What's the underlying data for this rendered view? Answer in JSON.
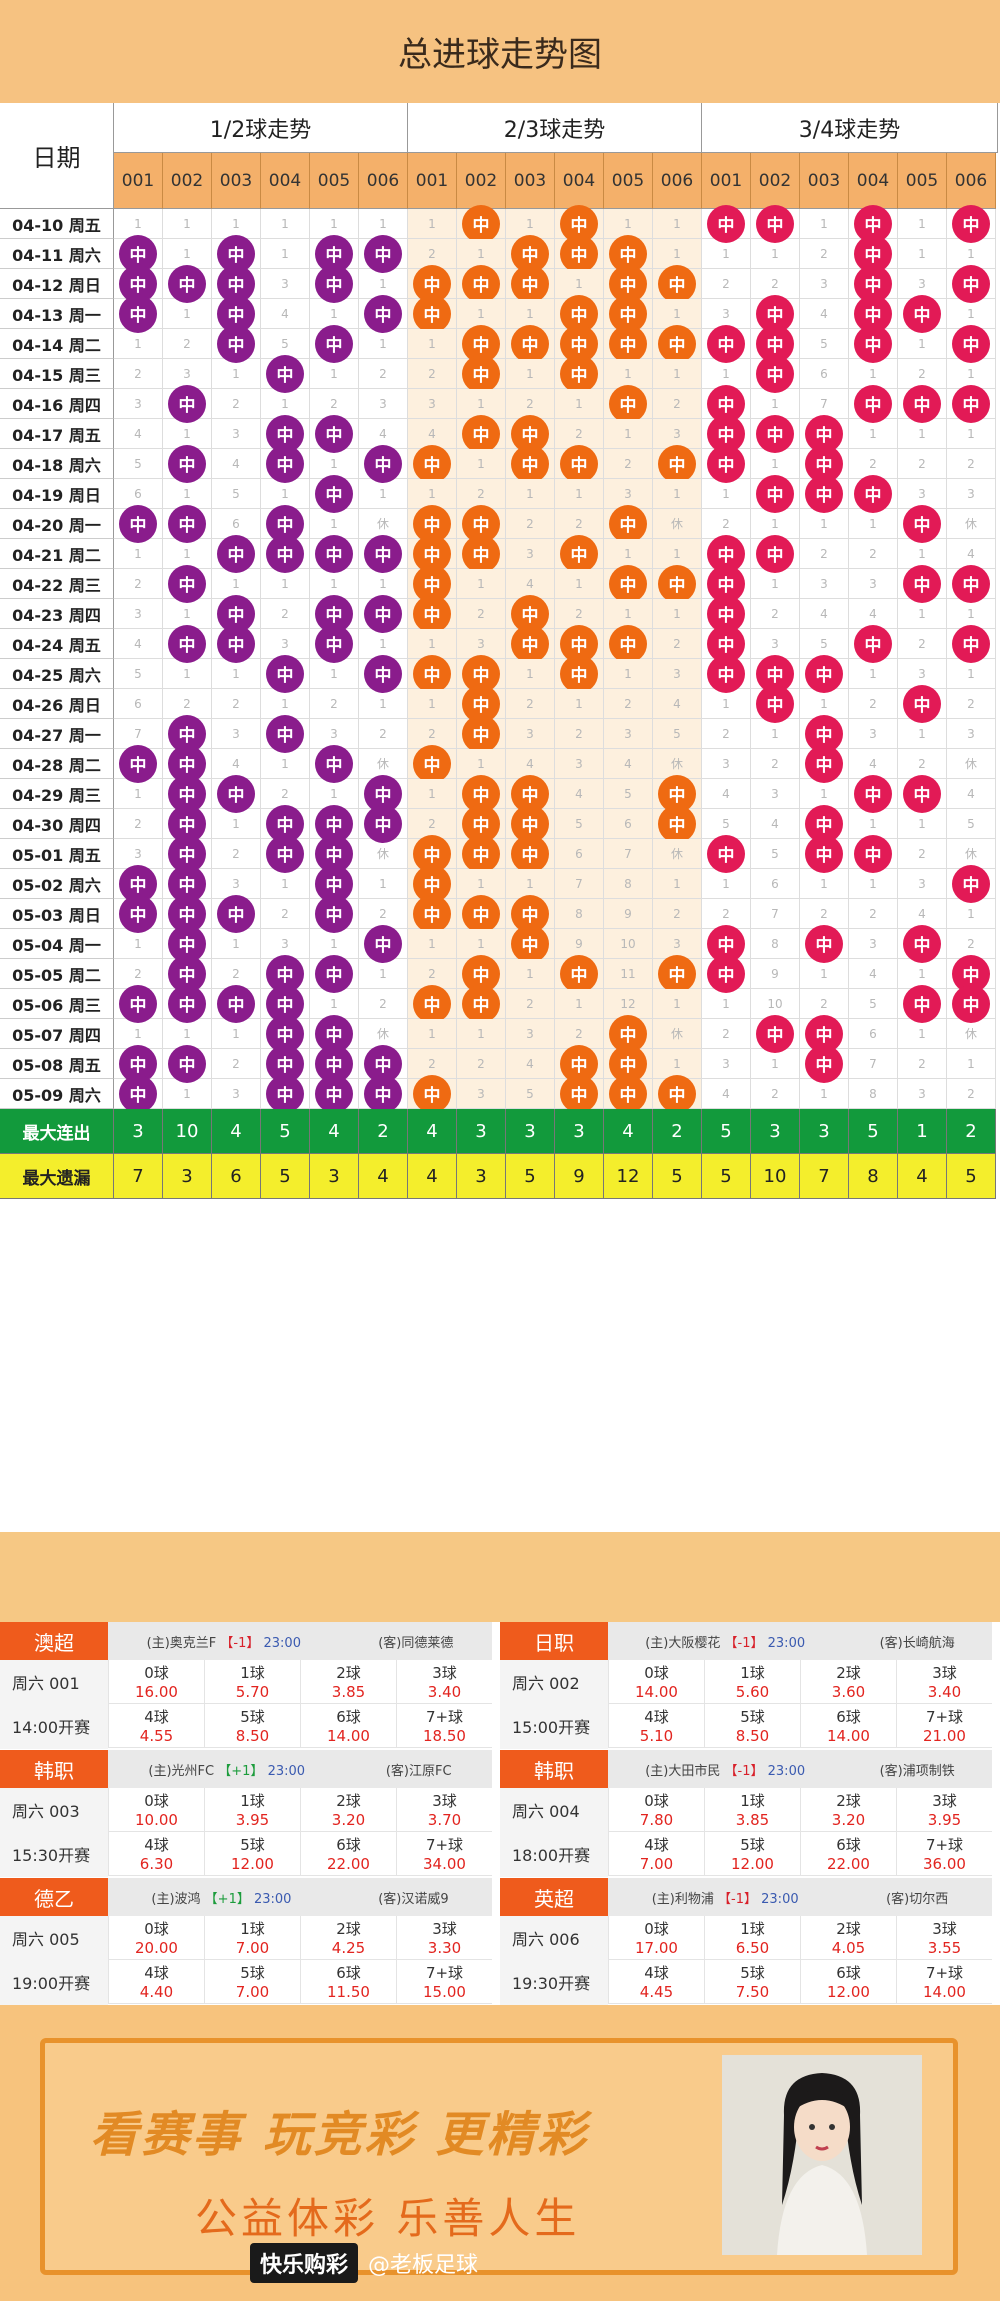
{
  "title": "总进球走势图",
  "header": {
    "date_label": "日期",
    "groups": [
      "1/2球走势",
      "2/3球走势",
      "3/4球走势"
    ],
    "numbers": [
      "001",
      "002",
      "003",
      "004",
      "005",
      "006"
    ]
  },
  "ball_label": "中",
  "rows": [
    {
      "date": "04-10 周五",
      "g1": [
        "1",
        "1",
        "1",
        "1",
        "1",
        "1"
      ],
      "g2": [
        "1",
        "中",
        "1",
        "中",
        "1",
        "1"
      ],
      "g3": [
        "中",
        "中",
        "1",
        "中",
        "1",
        "中"
      ]
    },
    {
      "date": "04-11 周六",
      "g1": [
        "中",
        "1",
        "中",
        "1",
        "中",
        "中"
      ],
      "g2": [
        "2",
        "1",
        "中",
        "中",
        "中",
        "1"
      ],
      "g3": [
        "1",
        "1",
        "2",
        "中",
        "1",
        "1"
      ]
    },
    {
      "date": "04-12 周日",
      "g1": [
        "中",
        "中",
        "中",
        "3",
        "中",
        "1"
      ],
      "g2": [
        "中",
        "中",
        "中",
        "1",
        "中",
        "中"
      ],
      "g3": [
        "2",
        "2",
        "3",
        "中",
        "3",
        "中"
      ]
    },
    {
      "date": "04-13 周一",
      "g1": [
        "中",
        "1",
        "中",
        "4",
        "1",
        "中"
      ],
      "g2": [
        "中",
        "1",
        "1",
        "中",
        "中",
        "1"
      ],
      "g3": [
        "3",
        "中",
        "4",
        "中",
        "中",
        "1"
      ]
    },
    {
      "date": "04-14 周二",
      "g1": [
        "1",
        "2",
        "中",
        "5",
        "中",
        "1"
      ],
      "g2": [
        "1",
        "中",
        "中",
        "中",
        "中",
        "中"
      ],
      "g3": [
        "中",
        "中",
        "5",
        "中",
        "1",
        "中"
      ]
    },
    {
      "date": "04-15 周三",
      "g1": [
        "2",
        "3",
        "1",
        "中",
        "1",
        "2"
      ],
      "g2": [
        "2",
        "中",
        "1",
        "中",
        "1",
        "1"
      ],
      "g3": [
        "1",
        "中",
        "6",
        "1",
        "2",
        "1"
      ]
    },
    {
      "date": "04-16 周四",
      "g1": [
        "3",
        "中",
        "2",
        "1",
        "2",
        "3"
      ],
      "g2": [
        "3",
        "1",
        "2",
        "1",
        "中",
        "2"
      ],
      "g3": [
        "中",
        "1",
        "7",
        "中",
        "中",
        "中"
      ]
    },
    {
      "date": "04-17 周五",
      "g1": [
        "4",
        "1",
        "3",
        "中",
        "中",
        "4"
      ],
      "g2": [
        "4",
        "中",
        "中",
        "2",
        "1",
        "3"
      ],
      "g3": [
        "中",
        "中",
        "中",
        "1",
        "1",
        "1"
      ]
    },
    {
      "date": "04-18 周六",
      "g1": [
        "5",
        "中",
        "4",
        "中",
        "1",
        "中"
      ],
      "g2": [
        "中",
        "1",
        "中",
        "中",
        "2",
        "中"
      ],
      "g3": [
        "中",
        "1",
        "中",
        "2",
        "2",
        "2"
      ]
    },
    {
      "date": "04-19 周日",
      "g1": [
        "6",
        "1",
        "5",
        "1",
        "中",
        "1"
      ],
      "g2": [
        "1",
        "2",
        "1",
        "1",
        "3",
        "1"
      ],
      "g3": [
        "1",
        "中",
        "中",
        "中",
        "3",
        "3"
      ]
    },
    {
      "date": "04-20 周一",
      "g1": [
        "中",
        "中",
        "6",
        "中",
        "1",
        "休"
      ],
      "g2": [
        "中",
        "中",
        "2",
        "2",
        "中",
        "休"
      ],
      "g3": [
        "2",
        "1",
        "1",
        "1",
        "中",
        "休"
      ]
    },
    {
      "date": "04-21 周二",
      "g1": [
        "1",
        "1",
        "中",
        "中",
        "中",
        "中"
      ],
      "g2": [
        "中",
        "中",
        "3",
        "中",
        "1",
        "1"
      ],
      "g3": [
        "中",
        "中",
        "2",
        "2",
        "1",
        "4"
      ]
    },
    {
      "date": "04-22 周三",
      "g1": [
        "2",
        "中",
        "1",
        "1",
        "1",
        "1"
      ],
      "g2": [
        "中",
        "1",
        "4",
        "1",
        "中",
        "中"
      ],
      "g3": [
        "中",
        "1",
        "3",
        "3",
        "中",
        "中"
      ]
    },
    {
      "date": "04-23 周四",
      "g1": [
        "3",
        "1",
        "中",
        "2",
        "中",
        "中"
      ],
      "g2": [
        "中",
        "2",
        "中",
        "2",
        "1",
        "1"
      ],
      "g3": [
        "中",
        "2",
        "4",
        "4",
        "1",
        "1"
      ]
    },
    {
      "date": "04-24 周五",
      "g1": [
        "4",
        "中",
        "中",
        "3",
        "中",
        "1"
      ],
      "g2": [
        "1",
        "3",
        "中",
        "中",
        "中",
        "2"
      ],
      "g3": [
        "中",
        "3",
        "5",
        "中",
        "2",
        "中"
      ]
    },
    {
      "date": "04-25 周六",
      "g1": [
        "5",
        "1",
        "1",
        "中",
        "1",
        "中"
      ],
      "g2": [
        "中",
        "中",
        "1",
        "中",
        "1",
        "3"
      ],
      "g3": [
        "中",
        "中",
        "中",
        "1",
        "3",
        "1"
      ]
    },
    {
      "date": "04-26 周日",
      "g1": [
        "6",
        "2",
        "2",
        "1",
        "2",
        "1"
      ],
      "g2": [
        "1",
        "中",
        "2",
        "1",
        "2",
        "4"
      ],
      "g3": [
        "1",
        "中",
        "1",
        "2",
        "中",
        "2"
      ]
    },
    {
      "date": "04-27 周一",
      "g1": [
        "7",
        "中",
        "3",
        "中",
        "3",
        "2"
      ],
      "g2": [
        "2",
        "中",
        "3",
        "2",
        "3",
        "5"
      ],
      "g3": [
        "2",
        "1",
        "中",
        "3",
        "1",
        "3"
      ]
    },
    {
      "date": "04-28 周二",
      "g1": [
        "中",
        "中",
        "4",
        "1",
        "中",
        "休"
      ],
      "g2": [
        "中",
        "1",
        "4",
        "3",
        "4",
        "休"
      ],
      "g3": [
        "3",
        "2",
        "中",
        "4",
        "2",
        "休"
      ]
    },
    {
      "date": "04-29 周三",
      "g1": [
        "1",
        "中",
        "中",
        "2",
        "1",
        "中"
      ],
      "g2": [
        "1",
        "中",
        "中",
        "4",
        "5",
        "中"
      ],
      "g3": [
        "4",
        "3",
        "1",
        "中",
        "中",
        "4"
      ]
    },
    {
      "date": "04-30 周四",
      "g1": [
        "2",
        "中",
        "1",
        "中",
        "中",
        "中"
      ],
      "g2": [
        "2",
        "中",
        "中",
        "5",
        "6",
        "中"
      ],
      "g3": [
        "5",
        "4",
        "中",
        "1",
        "1",
        "5"
      ]
    },
    {
      "date": "05-01 周五",
      "g1": [
        "3",
        "中",
        "2",
        "中",
        "中",
        "休"
      ],
      "g2": [
        "中",
        "中",
        "中",
        "6",
        "7",
        "休"
      ],
      "g3": [
        "中",
        "5",
        "中",
        "中",
        "2",
        "休"
      ]
    },
    {
      "date": "05-02 周六",
      "g1": [
        "中",
        "中",
        "3",
        "1",
        "中",
        "1"
      ],
      "g2": [
        "中",
        "1",
        "1",
        "7",
        "8",
        "1"
      ],
      "g3": [
        "1",
        "6",
        "1",
        "1",
        "3",
        "中"
      ]
    },
    {
      "date": "05-03 周日",
      "g1": [
        "中",
        "中",
        "中",
        "2",
        "中",
        "2"
      ],
      "g2": [
        "中",
        "中",
        "中",
        "8",
        "9",
        "2"
      ],
      "g3": [
        "2",
        "7",
        "2",
        "2",
        "4",
        "1"
      ]
    },
    {
      "date": "05-04 周一",
      "g1": [
        "1",
        "中",
        "1",
        "3",
        "1",
        "中"
      ],
      "g2": [
        "1",
        "1",
        "中",
        "9",
        "10",
        "3"
      ],
      "g3": [
        "中",
        "8",
        "中",
        "3",
        "中",
        "2"
      ]
    },
    {
      "date": "05-05 周二",
      "g1": [
        "2",
        "中",
        "2",
        "中",
        "中",
        "1"
      ],
      "g2": [
        "2",
        "中",
        "1",
        "中",
        "11",
        "中"
      ],
      "g3": [
        "中",
        "9",
        "1",
        "4",
        "1",
        "中"
      ]
    },
    {
      "date": "05-06 周三",
      "g1": [
        "中",
        "中",
        "中",
        "中",
        "1",
        "2"
      ],
      "g2": [
        "中",
        "中",
        "2",
        "1",
        "12",
        "1"
      ],
      "g3": [
        "1",
        "10",
        "2",
        "5",
        "中",
        "中"
      ]
    },
    {
      "date": "05-07 周四",
      "g1": [
        "1",
        "1",
        "1",
        "中",
        "中",
        "休"
      ],
      "g2": [
        "1",
        "1",
        "3",
        "2",
        "中",
        "休"
      ],
      "g3": [
        "2",
        "中",
        "中",
        "6",
        "1",
        "休"
      ]
    },
    {
      "date": "05-08 周五",
      "g1": [
        "中",
        "中",
        "2",
        "中",
        "中",
        "中"
      ],
      "g2": [
        "2",
        "2",
        "4",
        "中",
        "中",
        "1"
      ],
      "g3": [
        "3",
        "1",
        "中",
        "7",
        "2",
        "1"
      ]
    },
    {
      "date": "05-09 周六",
      "g1": [
        "中",
        "1",
        "3",
        "中",
        "中",
        "中"
      ],
      "g2": [
        "中",
        "3",
        "5",
        "中",
        "中",
        "中"
      ],
      "g3": [
        "4",
        "2",
        "1",
        "8",
        "3",
        "2"
      ]
    }
  ],
  "stats": {
    "max_streak_label": "最大连出",
    "max_streak": [
      "3",
      "10",
      "4",
      "5",
      "4",
      "2",
      "4",
      "3",
      "3",
      "3",
      "4",
      "2",
      "5",
      "3",
      "3",
      "5",
      "1",
      "2"
    ],
    "max_miss_label": "最大遗漏",
    "max_miss": [
      "7",
      "3",
      "6",
      "5",
      "3",
      "4",
      "4",
      "3",
      "5",
      "9",
      "12",
      "5",
      "5",
      "10",
      "7",
      "8",
      "4",
      "5"
    ]
  },
  "panels": [
    {
      "league": "澳超",
      "home": "(主)奥克兰F",
      "handicap": "【-1】",
      "hcp_type": "neg",
      "time": "23:00",
      "away": "(客)同德莱德",
      "match_no": "周六 001",
      "kickoff": "14:00开赛",
      "odds": [
        [
          "0球",
          "16.00"
        ],
        [
          "1球",
          "5.70"
        ],
        [
          "2球",
          "3.85"
        ],
        [
          "3球",
          "3.40"
        ],
        [
          "4球",
          "4.55"
        ],
        [
          "5球",
          "8.50"
        ],
        [
          "6球",
          "14.00"
        ],
        [
          "7+球",
          "18.50"
        ]
      ]
    },
    {
      "league": "日职",
      "home": "(主)大阪樱花",
      "handicap": "【-1】",
      "hcp_type": "neg",
      "time": "23:00",
      "away": "(客)长崎航海",
      "match_no": "周六 002",
      "kickoff": "15:00开赛",
      "odds": [
        [
          "0球",
          "14.00"
        ],
        [
          "1球",
          "5.60"
        ],
        [
          "2球",
          "3.60"
        ],
        [
          "3球",
          "3.40"
        ],
        [
          "4球",
          "5.10"
        ],
        [
          "5球",
          "8.50"
        ],
        [
          "6球",
          "14.00"
        ],
        [
          "7+球",
          "21.00"
        ]
      ]
    },
    {
      "league": "韩职",
      "home": "(主)光州FC",
      "handicap": "【+1】",
      "hcp_type": "pos",
      "time": "23:00",
      "away": "(客)江原FC",
      "match_no": "周六 003",
      "kickoff": "15:30开赛",
      "odds": [
        [
          "0球",
          "10.00"
        ],
        [
          "1球",
          "3.95"
        ],
        [
          "2球",
          "3.20"
        ],
        [
          "3球",
          "3.70"
        ],
        [
          "4球",
          "6.30"
        ],
        [
          "5球",
          "12.00"
        ],
        [
          "6球",
          "22.00"
        ],
        [
          "7+球",
          "34.00"
        ]
      ]
    },
    {
      "league": "韩职",
      "home": "(主)大田市民",
      "handicap": "【-1】",
      "hcp_type": "neg",
      "time": "23:00",
      "away": "(客)浦项制铁",
      "match_no": "周六 004",
      "kickoff": "18:00开赛",
      "odds": [
        [
          "0球",
          "7.80"
        ],
        [
          "1球",
          "3.85"
        ],
        [
          "2球",
          "3.20"
        ],
        [
          "3球",
          "3.95"
        ],
        [
          "4球",
          "7.00"
        ],
        [
          "5球",
          "12.00"
        ],
        [
          "6球",
          "22.00"
        ],
        [
          "7+球",
          "36.00"
        ]
      ]
    },
    {
      "league": "德乙",
      "home": "(主)波鸿",
      "handicap": "【+1】",
      "hcp_type": "pos",
      "time": "23:00",
      "away": "(客)汉诺威9",
      "match_no": "周六 005",
      "kickoff": "19:00开赛",
      "odds": [
        [
          "0球",
          "20.00"
        ],
        [
          "1球",
          "7.00"
        ],
        [
          "2球",
          "4.25"
        ],
        [
          "3球",
          "3.30"
        ],
        [
          "4球",
          "4.40"
        ],
        [
          "5球",
          "7.00"
        ],
        [
          "6球",
          "11.50"
        ],
        [
          "7+球",
          "15.00"
        ]
      ]
    },
    {
      "league": "英超",
      "home": "(主)利物浦",
      "handicap": "【-1】",
      "hcp_type": "neg",
      "time": "23:00",
      "away": "(客)切尔西",
      "match_no": "周六 006",
      "kickoff": "19:30开赛",
      "odds": [
        [
          "0球",
          "17.00"
        ],
        [
          "1球",
          "6.50"
        ],
        [
          "2球",
          "4.05"
        ],
        [
          "3球",
          "3.55"
        ],
        [
          "4球",
          "4.45"
        ],
        [
          "5球",
          "7.50"
        ],
        [
          "6球",
          "12.00"
        ],
        [
          "7+球",
          "14.00"
        ]
      ]
    }
  ],
  "banner": {
    "slogan1": "看赛事 玩竞彩 更精彩",
    "slogan2": "公益体彩 乐善人生",
    "brand": "快乐购彩",
    "handle": "@老板足球"
  },
  "colors": {
    "g1": "#8a1c8c",
    "g2": "#ef6a12",
    "g3": "#e21a56",
    "accent": "#ef5b1c"
  }
}
